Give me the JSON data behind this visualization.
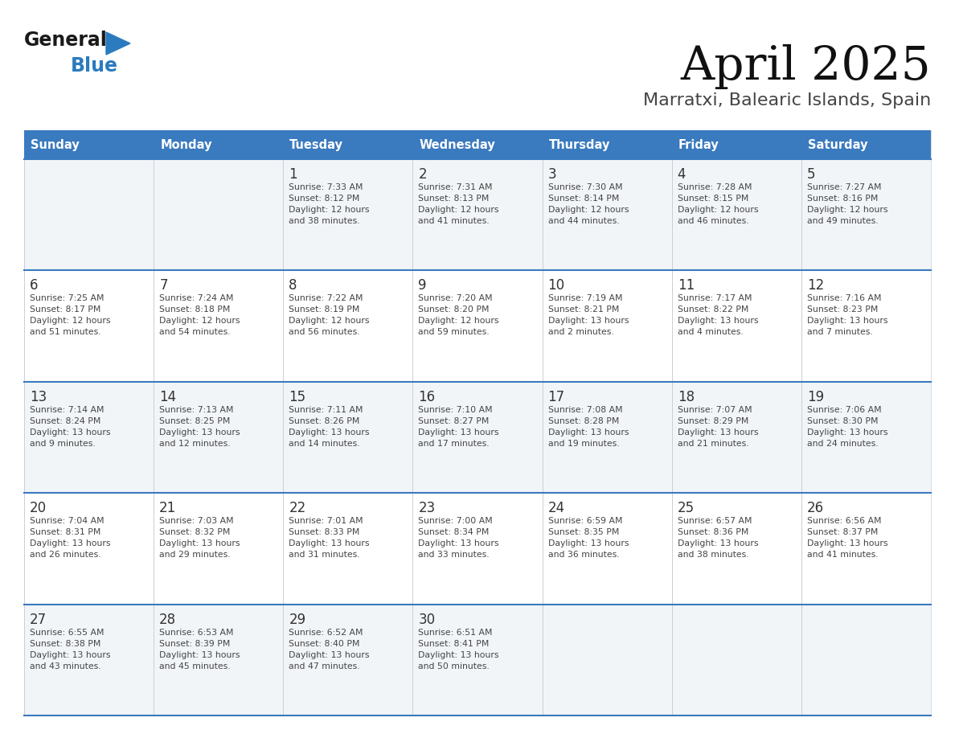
{
  "title": "April 2025",
  "subtitle": "Marratxi, Balearic Islands, Spain",
  "header_bg_color": "#3a7abf",
  "header_text_color": "#ffffff",
  "cell_bg_color": "#ffffff",
  "cell_bg_odd": "#f2f5f8",
  "text_color": "#444444",
  "line_color": "#3a7abf",
  "days_of_week": [
    "Sunday",
    "Monday",
    "Tuesday",
    "Wednesday",
    "Thursday",
    "Friday",
    "Saturday"
  ],
  "weeks": [
    [
      {
        "day": "",
        "info": ""
      },
      {
        "day": "",
        "info": ""
      },
      {
        "day": "1",
        "info": "Sunrise: 7:33 AM\nSunset: 8:12 PM\nDaylight: 12 hours\nand 38 minutes."
      },
      {
        "day": "2",
        "info": "Sunrise: 7:31 AM\nSunset: 8:13 PM\nDaylight: 12 hours\nand 41 minutes."
      },
      {
        "day": "3",
        "info": "Sunrise: 7:30 AM\nSunset: 8:14 PM\nDaylight: 12 hours\nand 44 minutes."
      },
      {
        "day": "4",
        "info": "Sunrise: 7:28 AM\nSunset: 8:15 PM\nDaylight: 12 hours\nand 46 minutes."
      },
      {
        "day": "5",
        "info": "Sunrise: 7:27 AM\nSunset: 8:16 PM\nDaylight: 12 hours\nand 49 minutes."
      }
    ],
    [
      {
        "day": "6",
        "info": "Sunrise: 7:25 AM\nSunset: 8:17 PM\nDaylight: 12 hours\nand 51 minutes."
      },
      {
        "day": "7",
        "info": "Sunrise: 7:24 AM\nSunset: 8:18 PM\nDaylight: 12 hours\nand 54 minutes."
      },
      {
        "day": "8",
        "info": "Sunrise: 7:22 AM\nSunset: 8:19 PM\nDaylight: 12 hours\nand 56 minutes."
      },
      {
        "day": "9",
        "info": "Sunrise: 7:20 AM\nSunset: 8:20 PM\nDaylight: 12 hours\nand 59 minutes."
      },
      {
        "day": "10",
        "info": "Sunrise: 7:19 AM\nSunset: 8:21 PM\nDaylight: 13 hours\nand 2 minutes."
      },
      {
        "day": "11",
        "info": "Sunrise: 7:17 AM\nSunset: 8:22 PM\nDaylight: 13 hours\nand 4 minutes."
      },
      {
        "day": "12",
        "info": "Sunrise: 7:16 AM\nSunset: 8:23 PM\nDaylight: 13 hours\nand 7 minutes."
      }
    ],
    [
      {
        "day": "13",
        "info": "Sunrise: 7:14 AM\nSunset: 8:24 PM\nDaylight: 13 hours\nand 9 minutes."
      },
      {
        "day": "14",
        "info": "Sunrise: 7:13 AM\nSunset: 8:25 PM\nDaylight: 13 hours\nand 12 minutes."
      },
      {
        "day": "15",
        "info": "Sunrise: 7:11 AM\nSunset: 8:26 PM\nDaylight: 13 hours\nand 14 minutes."
      },
      {
        "day": "16",
        "info": "Sunrise: 7:10 AM\nSunset: 8:27 PM\nDaylight: 13 hours\nand 17 minutes."
      },
      {
        "day": "17",
        "info": "Sunrise: 7:08 AM\nSunset: 8:28 PM\nDaylight: 13 hours\nand 19 minutes."
      },
      {
        "day": "18",
        "info": "Sunrise: 7:07 AM\nSunset: 8:29 PM\nDaylight: 13 hours\nand 21 minutes."
      },
      {
        "day": "19",
        "info": "Sunrise: 7:06 AM\nSunset: 8:30 PM\nDaylight: 13 hours\nand 24 minutes."
      }
    ],
    [
      {
        "day": "20",
        "info": "Sunrise: 7:04 AM\nSunset: 8:31 PM\nDaylight: 13 hours\nand 26 minutes."
      },
      {
        "day": "21",
        "info": "Sunrise: 7:03 AM\nSunset: 8:32 PM\nDaylight: 13 hours\nand 29 minutes."
      },
      {
        "day": "22",
        "info": "Sunrise: 7:01 AM\nSunset: 8:33 PM\nDaylight: 13 hours\nand 31 minutes."
      },
      {
        "day": "23",
        "info": "Sunrise: 7:00 AM\nSunset: 8:34 PM\nDaylight: 13 hours\nand 33 minutes."
      },
      {
        "day": "24",
        "info": "Sunrise: 6:59 AM\nSunset: 8:35 PM\nDaylight: 13 hours\nand 36 minutes."
      },
      {
        "day": "25",
        "info": "Sunrise: 6:57 AM\nSunset: 8:36 PM\nDaylight: 13 hours\nand 38 minutes."
      },
      {
        "day": "26",
        "info": "Sunrise: 6:56 AM\nSunset: 8:37 PM\nDaylight: 13 hours\nand 41 minutes."
      }
    ],
    [
      {
        "day": "27",
        "info": "Sunrise: 6:55 AM\nSunset: 8:38 PM\nDaylight: 13 hours\nand 43 minutes."
      },
      {
        "day": "28",
        "info": "Sunrise: 6:53 AM\nSunset: 8:39 PM\nDaylight: 13 hours\nand 45 minutes."
      },
      {
        "day": "29",
        "info": "Sunrise: 6:52 AM\nSunset: 8:40 PM\nDaylight: 13 hours\nand 47 minutes."
      },
      {
        "day": "30",
        "info": "Sunrise: 6:51 AM\nSunset: 8:41 PM\nDaylight: 13 hours\nand 50 minutes."
      },
      {
        "day": "",
        "info": ""
      },
      {
        "day": "",
        "info": ""
      },
      {
        "day": "",
        "info": ""
      }
    ]
  ],
  "logo_color_general": "#1a1a1a",
  "logo_color_blue": "#2b7bbf",
  "logo_triangle_color": "#2b7bbf"
}
